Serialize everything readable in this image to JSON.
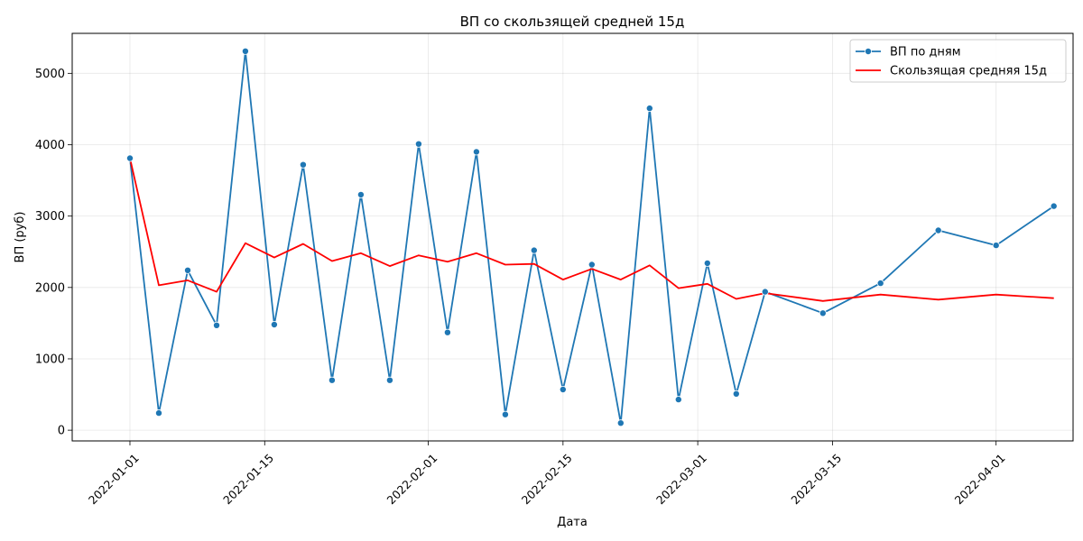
{
  "chart_data": {
    "type": "line",
    "title": "ВП со скользящей средней 15д",
    "xlabel": "Дата",
    "ylabel": "ВП (руб)",
    "xlim": [
      "2021-12-26",
      "2022-04-09"
    ],
    "ylim": [
      -150,
      5560
    ],
    "x_ticks": [
      "2022-01-01",
      "2022-01-15",
      "2022-02-01",
      "2022-02-15",
      "2022-03-01",
      "2022-03-15",
      "2022-04-01"
    ],
    "y_ticks": [
      0,
      1000,
      2000,
      3000,
      4000,
      5000
    ],
    "grid": true,
    "legend_position": "top-right",
    "series": [
      {
        "name": "ВП по дням",
        "color": "#1f77b4",
        "marker": "circle",
        "x": [
          "2022-01-01",
          "2022-01-04",
          "2022-01-07",
          "2022-01-10",
          "2022-01-13",
          "2022-01-16",
          "2022-01-19",
          "2022-01-22",
          "2022-01-25",
          "2022-01-28",
          "2022-01-31",
          "2022-02-03",
          "2022-02-06",
          "2022-02-09",
          "2022-02-12",
          "2022-02-15",
          "2022-02-18",
          "2022-02-21",
          "2022-02-24",
          "2022-02-27",
          "2022-03-02",
          "2022-03-05",
          "2022-03-08",
          "2022-03-14",
          "2022-03-20",
          "2022-03-26",
          "2022-04-01",
          "2022-04-07"
        ],
        "values": [
          3810,
          240,
          2240,
          1470,
          5310,
          1480,
          3720,
          700,
          3300,
          700,
          4010,
          1370,
          3900,
          220,
          2520,
          570,
          2320,
          100,
          4510,
          430,
          2340,
          510,
          1940,
          1640,
          2060,
          2800,
          2590,
          3140
        ]
      },
      {
        "name": "Скользящая средняя 15д",
        "color": "#ff0000",
        "marker": "none",
        "x": [
          "2022-01-01",
          "2022-01-04",
          "2022-01-07",
          "2022-01-10",
          "2022-01-13",
          "2022-01-16",
          "2022-01-19",
          "2022-01-22",
          "2022-01-25",
          "2022-01-28",
          "2022-01-31",
          "2022-02-03",
          "2022-02-06",
          "2022-02-09",
          "2022-02-12",
          "2022-02-15",
          "2022-02-18",
          "2022-02-21",
          "2022-02-24",
          "2022-02-27",
          "2022-03-02",
          "2022-03-05",
          "2022-03-08",
          "2022-03-14",
          "2022-03-20",
          "2022-03-26",
          "2022-04-01",
          "2022-04-07"
        ],
        "values": [
          3810,
          2030,
          2100,
          1940,
          2620,
          2420,
          2610,
          2370,
          2480,
          2300,
          2450,
          2360,
          2480,
          2320,
          2330,
          2110,
          2260,
          2110,
          2310,
          1990,
          2050,
          1840,
          1920,
          1810,
          1900,
          1830,
          1900,
          1850
        ]
      }
    ]
  }
}
